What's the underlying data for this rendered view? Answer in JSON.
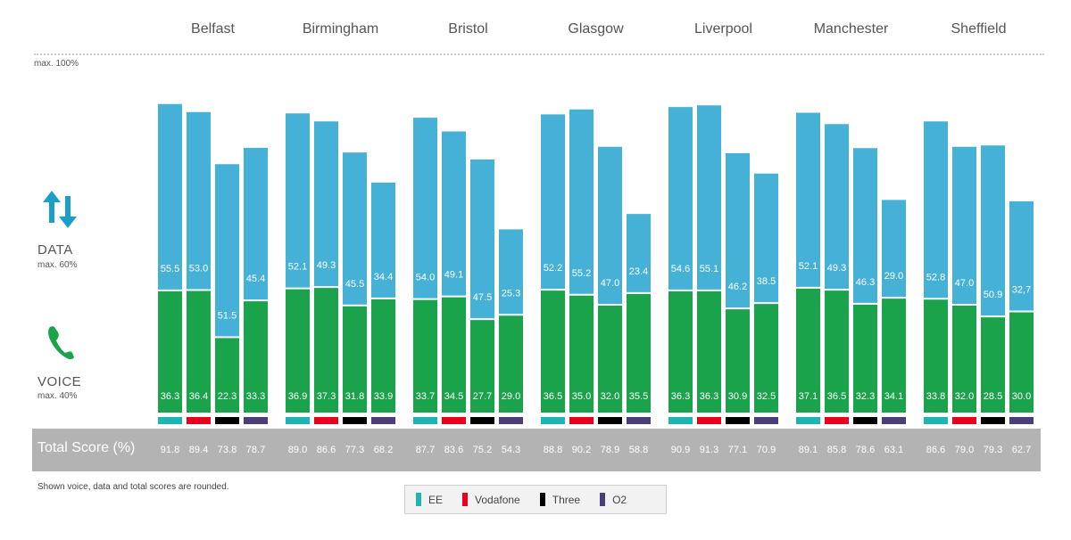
{
  "chart_data": {
    "type": "bar",
    "stacked": true,
    "cities": [
      "Belfast",
      "Birmingham",
      "Bristol",
      "Glasgow",
      "Liverpool",
      "Manchester",
      "Sheffield"
    ],
    "operators": [
      {
        "name": "EE",
        "color": "#1eb4b4"
      },
      {
        "name": "Vodafone",
        "color": "#e8001c"
      },
      {
        "name": "Three",
        "color": "#000000"
      },
      {
        "name": "O2",
        "color": "#4a3d7a"
      }
    ],
    "voice_color": "#1ba34c",
    "data_color": "#45b1d6",
    "voice": [
      [
        "36.3",
        "36.4",
        "22.3",
        "33.3"
      ],
      [
        "36.9",
        "37.3",
        "31.8",
        "33.9"
      ],
      [
        "33.7",
        "34.5",
        "27.7",
        "29.0"
      ],
      [
        "36.5",
        "35.0",
        "32.0",
        "35.5"
      ],
      [
        "36.3",
        "36.3",
        "30.9",
        "32.5"
      ],
      [
        "37.1",
        "36.5",
        "32.3",
        "34.1"
      ],
      [
        "33.8",
        "32.0",
        "28.5",
        "30.0"
      ]
    ],
    "data": [
      [
        "55.5",
        "53.0",
        "51.5",
        "45.4"
      ],
      [
        "52.1",
        "49.3",
        "45.5",
        "34.4"
      ],
      [
        "54.0",
        "49.1",
        "47.5",
        "25.3"
      ],
      [
        "52.2",
        "55.2",
        "47.0",
        "23.4"
      ],
      [
        "54.6",
        "55.1",
        "46.2",
        "38.5"
      ],
      [
        "52.1",
        "49.3",
        "46.3",
        "29.0"
      ],
      [
        "52.8",
        "47.0",
        "50.9",
        "32,7"
      ]
    ],
    "total": [
      [
        "91.8",
        "89.4",
        "73.8",
        "78.7"
      ],
      [
        "89.0",
        "86.6",
        "77.3",
        "68.2"
      ],
      [
        "87.7",
        "83.6",
        "75.2",
        "54.3"
      ],
      [
        "88.8",
        "90.2",
        "78.9",
        "58.8"
      ],
      [
        "90.9",
        "91.3",
        "77.1",
        "70.9"
      ],
      [
        "89.1",
        "85.8",
        "78.6",
        "63.1"
      ],
      [
        "86.6",
        "79.0",
        "79.3",
        "62.7"
      ]
    ],
    "ylim": [
      0,
      100
    ]
  },
  "labels": {
    "max_total": "max. 100%",
    "data_title": "DATA",
    "data_max": "max. 60%",
    "voice_title": "VOICE",
    "voice_max": "max. 40%",
    "total_title": "Total Score (%)",
    "footnote": "Shown voice, data and total scores are rounded."
  },
  "icons": {
    "data": "up-down-arrows-icon",
    "voice": "phone-icon"
  }
}
